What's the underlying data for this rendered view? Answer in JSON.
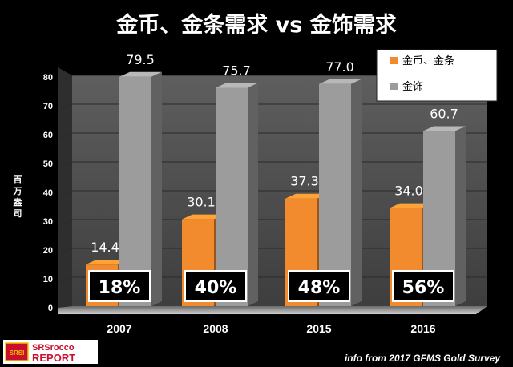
{
  "chart_data": {
    "type": "bar",
    "title": "金币、金条需求 vs 金饰需求",
    "ylabel": "百万盎司",
    "xlabel": "",
    "ylim": [
      0,
      80
    ],
    "yticks": [
      0,
      10,
      20,
      30,
      40,
      50,
      60,
      70,
      80
    ],
    "categories": [
      "2007",
      "2008",
      "2015",
      "2016"
    ],
    "series": [
      {
        "name": "金币、金条",
        "color": "#f28a2e",
        "values": [
          14.4,
          30.1,
          37.3,
          34.0
        ],
        "labels": [
          "14.4",
          "30.1",
          "37.3",
          "34.0"
        ]
      },
      {
        "name": "金饰",
        "color": "#9c9c9c",
        "values": [
          79.5,
          75.7,
          77.0,
          60.7
        ],
        "labels": [
          "79.5",
          "75.7",
          "77.0",
          "60.7"
        ]
      }
    ],
    "percent_labels": [
      "18%",
      "40%",
      "48%",
      "56%"
    ],
    "legend_position": "top-right",
    "grid": true
  },
  "branding": {
    "logo_badge": "SRSI",
    "logo_line1": "SRSrocco",
    "logo_line2": "REPORT",
    "source": "info from  2017 GFMS Gold Survey"
  }
}
